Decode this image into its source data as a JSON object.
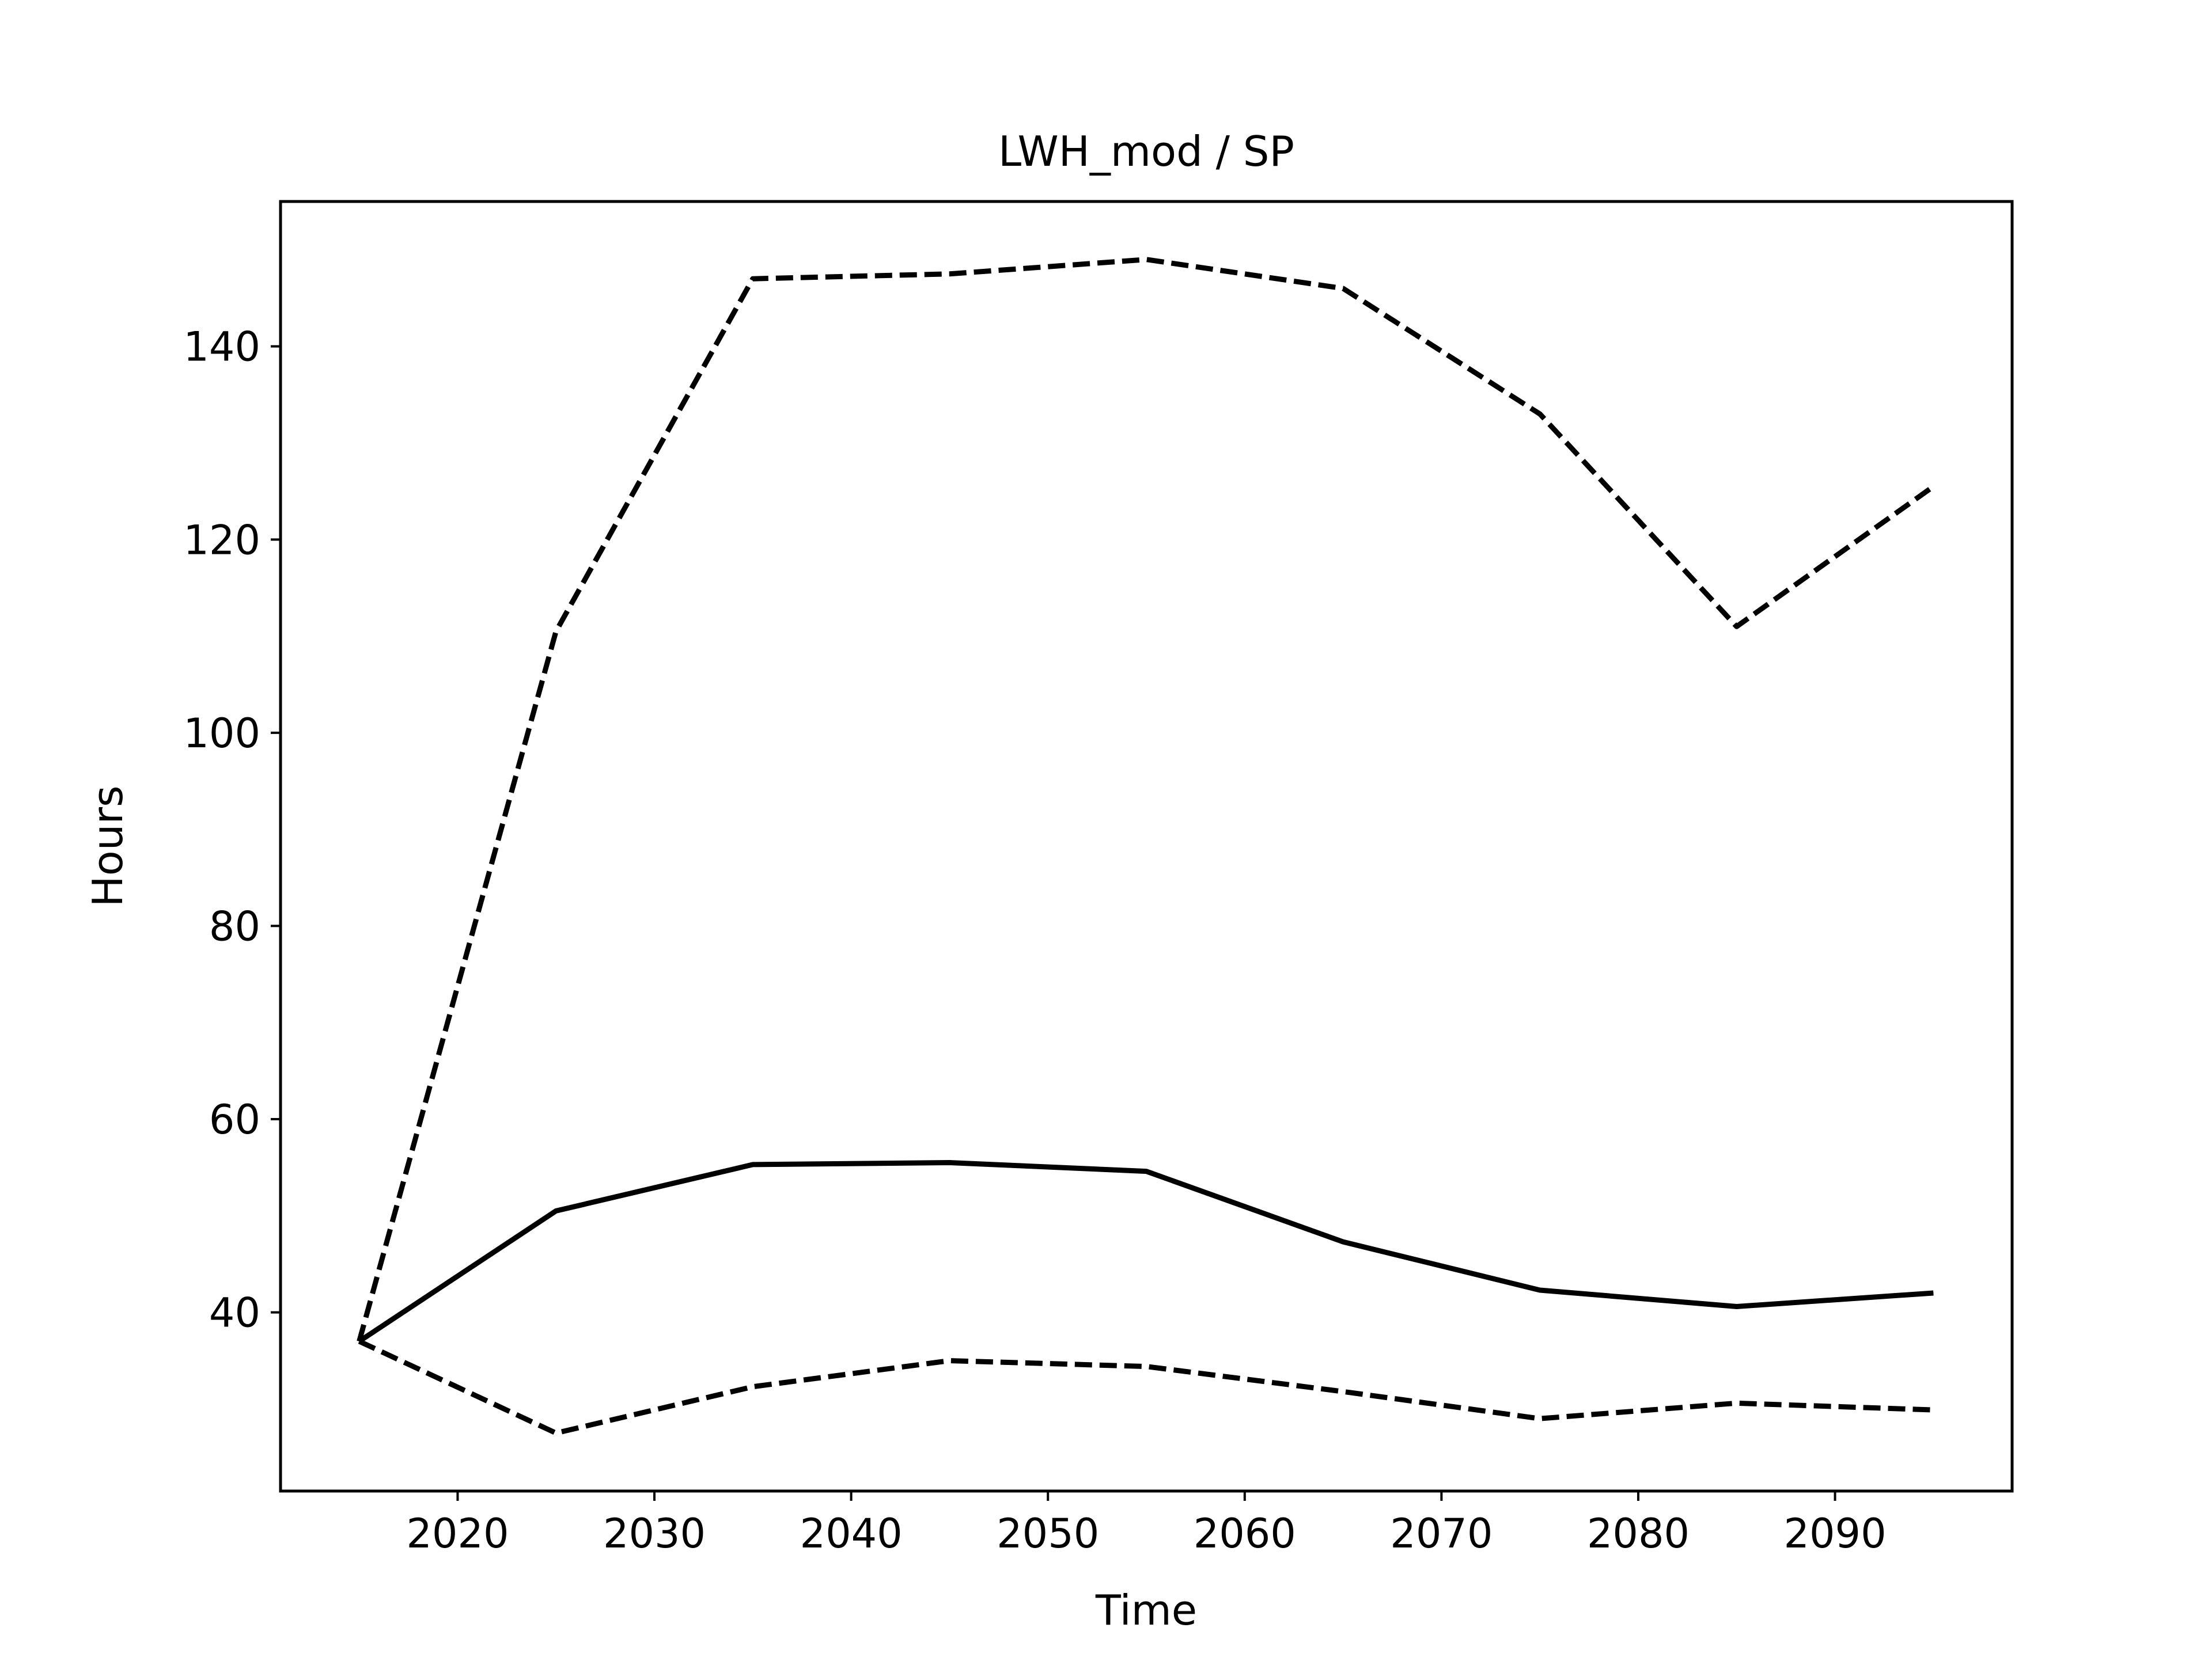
{
  "chart_data": {
    "type": "line",
    "title": "LWH_mod / SP",
    "xlabel": "Time",
    "ylabel": "Hours",
    "xlim": [
      2011,
      2099
    ],
    "ylim": [
      21.5,
      155
    ],
    "x_ticks": [
      2020,
      2030,
      2040,
      2050,
      2060,
      2070,
      2080,
      2090
    ],
    "y_ticks": [
      40,
      60,
      80,
      100,
      120,
      140
    ],
    "grid": false,
    "legend": "none",
    "x": [
      2015,
      2025,
      2035,
      2045,
      2055,
      2065,
      2075,
      2085,
      2095
    ],
    "series": [
      {
        "style": "dashed",
        "color": "#000000",
        "values": [
          37.0,
          110.5,
          147.0,
          147.5,
          149.0,
          146.0,
          133.0,
          111.0,
          125.5
        ]
      },
      {
        "style": "solid",
        "color": "#000000",
        "values": [
          37.0,
          50.5,
          55.3,
          55.5,
          54.6,
          47.3,
          42.3,
          40.6,
          42.0
        ]
      },
      {
        "style": "dashed",
        "color": "#000000",
        "values": [
          37.0,
          27.5,
          32.3,
          35.0,
          34.4,
          31.8,
          29.0,
          30.6,
          29.9
        ]
      }
    ]
  }
}
